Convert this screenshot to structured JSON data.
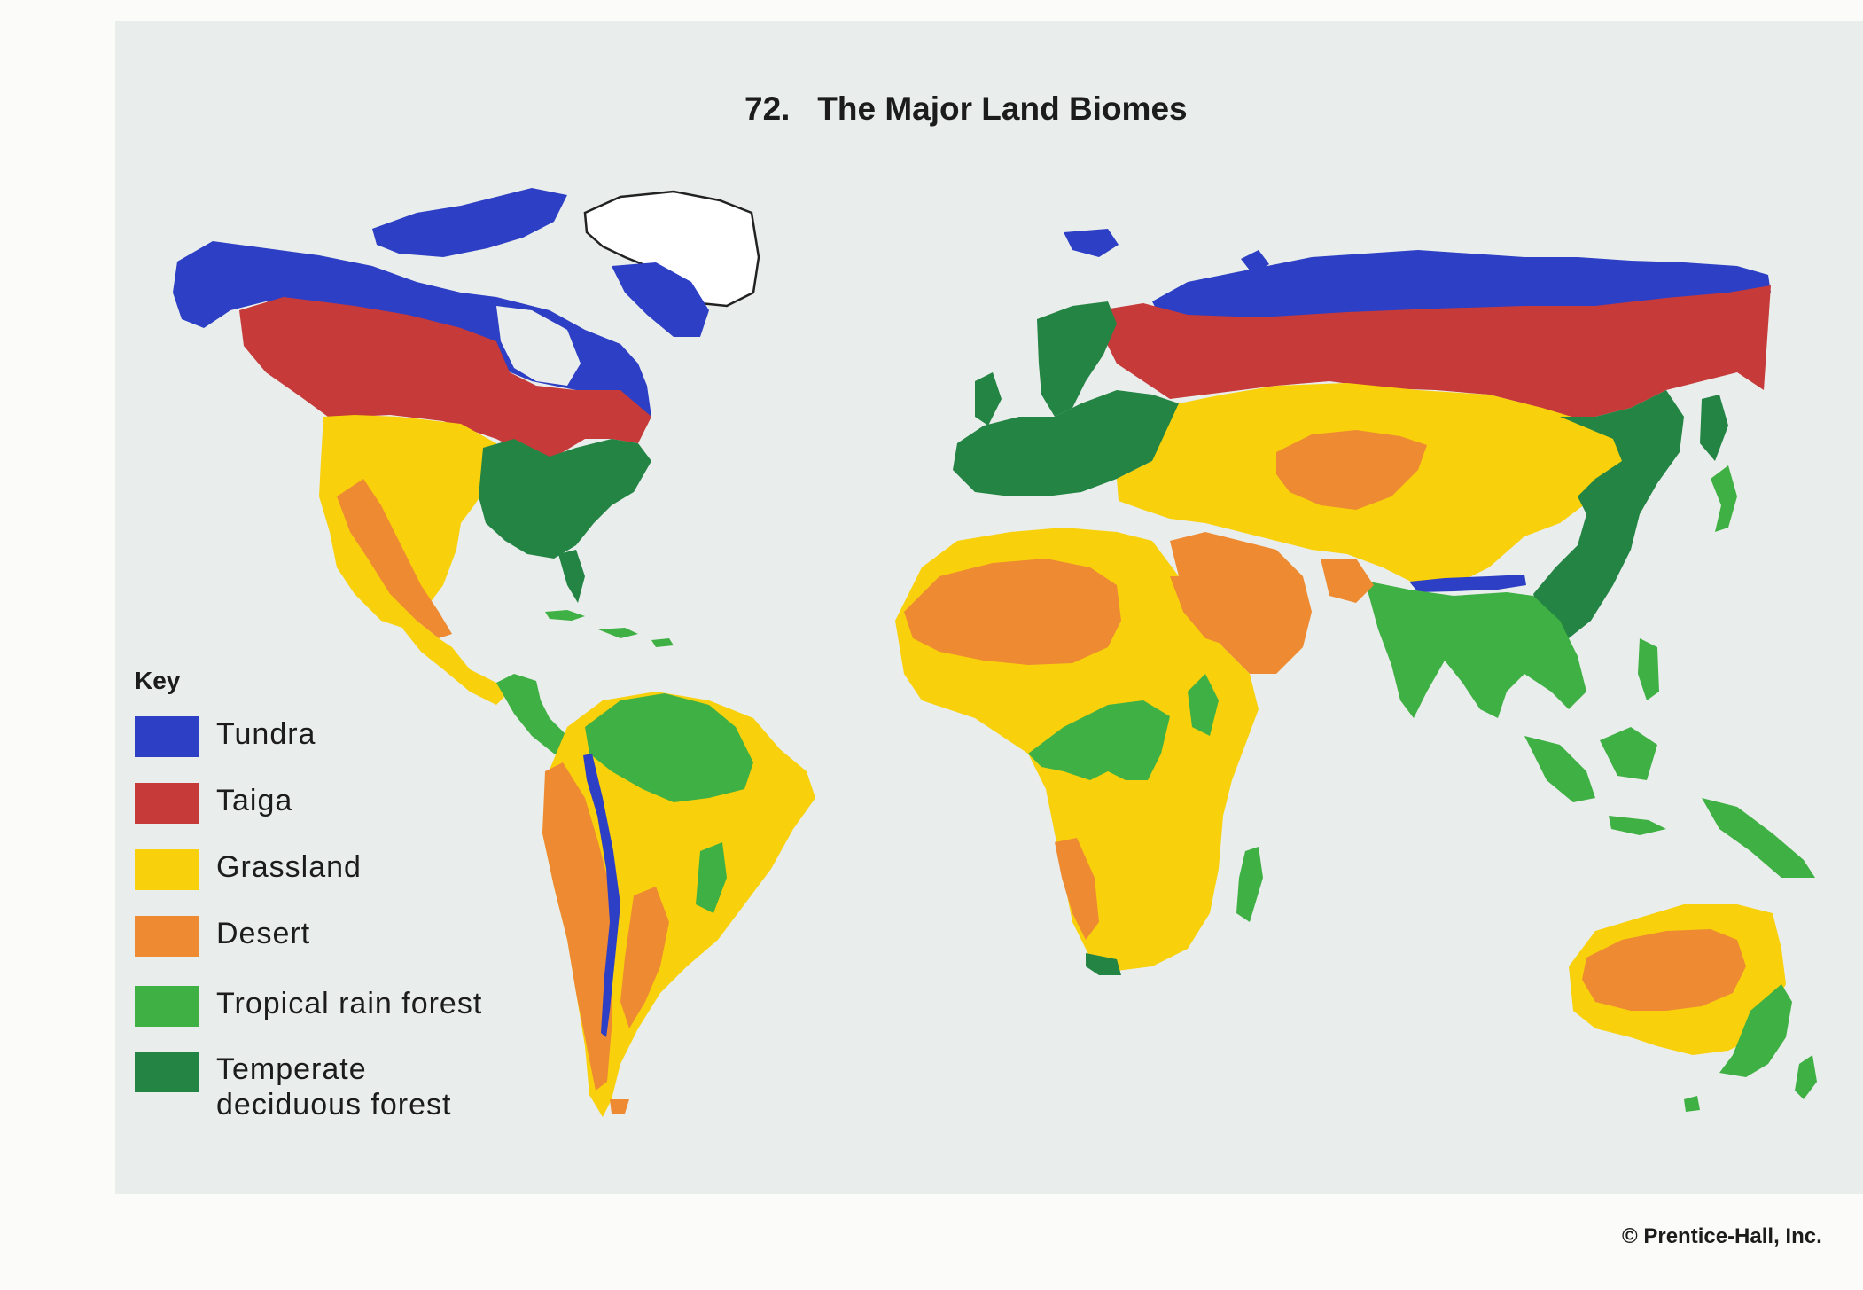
{
  "title": "72.   The Major Land Biomes",
  "colors": {
    "tundra": "#2d3fc4",
    "taiga": "#c63a3a",
    "grassland": "#f8d10c",
    "desert": "#ee8a32",
    "tropical": "#3fb043",
    "temperate": "#238444",
    "ice": "#ffffff"
  },
  "legend": {
    "heading": "Key",
    "items": [
      {
        "biome": "tundra",
        "label": "Tundra",
        "color": "#2d3fc4"
      },
      {
        "biome": "taiga",
        "label": "Taiga",
        "color": "#c63a3a"
      },
      {
        "biome": "grassland",
        "label": "Grassland",
        "color": "#f8d10c"
      },
      {
        "biome": "desert",
        "label": "Desert",
        "color": "#ee8a32"
      },
      {
        "biome": "tropical",
        "label": "Tropical rain forest",
        "color": "#3fb043"
      },
      {
        "biome": "temperate",
        "label": "Temperate deciduous forest",
        "label_lines": [
          "Temperate",
          "deciduous forest"
        ],
        "color": "#238444"
      }
    ]
  },
  "credit": "© Prentice-Hall, Inc."
}
